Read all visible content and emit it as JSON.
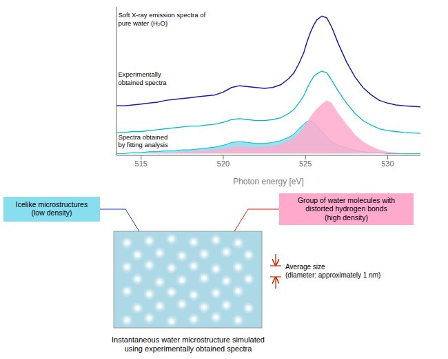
{
  "chart_data": {
    "type": "line",
    "xlabel": "Photon energy [eV]",
    "x": [
      513.5,
      514,
      514.5,
      515,
      515.5,
      516,
      516.5,
      517,
      517.5,
      518,
      518.5,
      519,
      519.5,
      520,
      520.2,
      520.5,
      521,
      521.5,
      522,
      522.5,
      523,
      523.5,
      524,
      524.3,
      524.6,
      524.9,
      525.1,
      525.3,
      525.5,
      525.7,
      526,
      526.3,
      526.6,
      527,
      527.5,
      528,
      528.5,
      529,
      529.5,
      530,
      530.5,
      531,
      532
    ],
    "xlim": [
      513.5,
      532
    ],
    "xticks": [
      515,
      520,
      525,
      530
    ],
    "ylim": [
      -0.02,
      1.6
    ],
    "tick_labels": "x",
    "series": [
      {
        "type": "area",
        "color": "#88ddee",
        "values": [
          0.0,
          0.0,
          0.01,
          0.01,
          0.02,
          0.02,
          0.03,
          0.03,
          0.04,
          0.04,
          0.05,
          0.06,
          0.07,
          0.09,
          0.1,
          0.12,
          0.13,
          0.12,
          0.11,
          0.11,
          0.12,
          0.14,
          0.18,
          0.21,
          0.27,
          0.32,
          0.35,
          0.36,
          0.34,
          0.3,
          0.24,
          0.18,
          0.13,
          0.09,
          0.06,
          0.04,
          0.02,
          0.01,
          0.01,
          0.0,
          0.0,
          0.0,
          0.0
        ]
      },
      {
        "type": "area",
        "color": "#ffaacc",
        "values": [
          0.0,
          0.0,
          0.0,
          0.0,
          0.0,
          0.01,
          0.01,
          0.01,
          0.02,
          0.02,
          0.03,
          0.03,
          0.04,
          0.05,
          0.06,
          0.07,
          0.08,
          0.07,
          0.07,
          0.07,
          0.08,
          0.1,
          0.14,
          0.17,
          0.22,
          0.28,
          0.34,
          0.4,
          0.45,
          0.49,
          0.54,
          0.58,
          0.55,
          0.44,
          0.32,
          0.21,
          0.13,
          0.08,
          0.04,
          0.02,
          0.01,
          0.0,
          0.0
        ]
      },
      {
        "type": "line",
        "color": "#00bbcc",
        "values": [
          0.23,
          0.23,
          0.24,
          0.24,
          0.25,
          0.26,
          0.27,
          0.28,
          0.29,
          0.3,
          0.3,
          0.31,
          0.32,
          0.34,
          0.35,
          0.37,
          0.38,
          0.37,
          0.36,
          0.36,
          0.37,
          0.39,
          0.44,
          0.48,
          0.55,
          0.63,
          0.71,
          0.78,
          0.84,
          0.87,
          0.9,
          0.88,
          0.8,
          0.68,
          0.55,
          0.44,
          0.36,
          0.31,
          0.27,
          0.25,
          0.24,
          0.23,
          0.22
        ]
      },
      {
        "type": "line",
        "color": "#1a1aaa",
        "values": [
          0.52,
          0.52,
          0.53,
          0.54,
          0.55,
          0.56,
          0.58,
          0.59,
          0.6,
          0.61,
          0.62,
          0.63,
          0.64,
          0.67,
          0.69,
          0.72,
          0.74,
          0.73,
          0.72,
          0.71,
          0.72,
          0.75,
          0.82,
          0.88,
          0.98,
          1.1,
          1.22,
          1.32,
          1.4,
          1.46,
          1.5,
          1.48,
          1.38,
          1.2,
          1.0,
          0.84,
          0.72,
          0.64,
          0.58,
          0.55,
          0.53,
          0.52,
          0.51
        ]
      }
    ],
    "annotations": [
      "Soft X-ray emission spectra of\npure water (H₂O)",
      "Experimentally\nobtained spectra",
      "Spectra obtained\nby fitting analysis",
      "Icelike microstructures\n(low density)",
      "Group of water molecules with\ndistorted hydrogen bonds\n(high density)",
      "Average size\n(diameter: approximately 1 nm)",
      "Instantaneous water microstructure simulated\nusing experimentally obtained spectra"
    ]
  }
}
